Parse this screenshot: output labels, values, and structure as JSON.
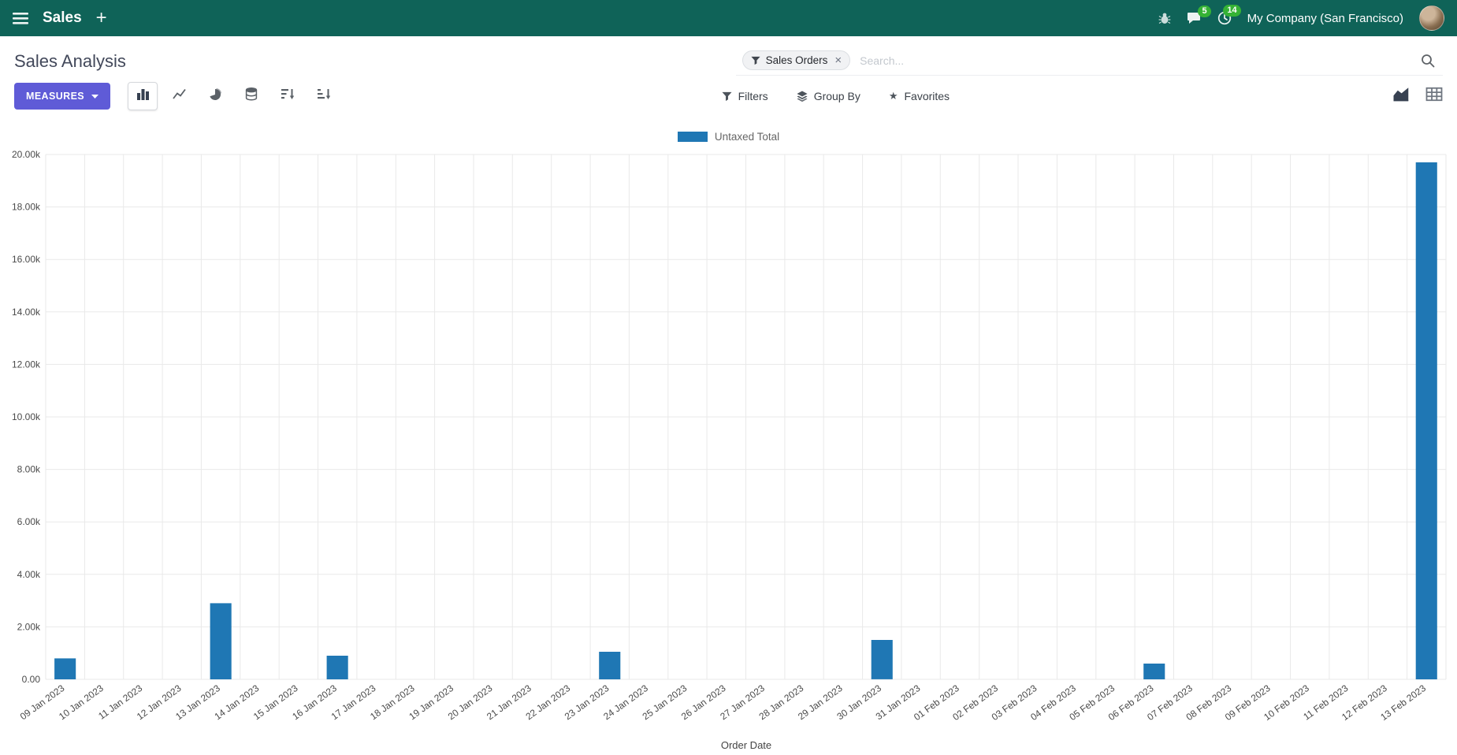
{
  "colors": {
    "navbar_bg": "#0f6358",
    "accent": "#5f5bd7",
    "badge_green": "#35b235"
  },
  "navbar": {
    "app_name": "Sales",
    "company": "My Company (San Francisco)",
    "messages_badge": "5",
    "activities_badge": "14"
  },
  "control_panel": {
    "title": "Sales Analysis",
    "measures_label": "MEASURES",
    "search": {
      "facet": "Sales Orders",
      "placeholder": "Search..."
    },
    "filters_label": "Filters",
    "group_by_label": "Group By",
    "favorites_label": "Favorites"
  },
  "chart_data": {
    "type": "bar",
    "title": "",
    "legend": [
      "Untaxed Total"
    ],
    "categories": [
      "09 Jan 2023",
      "10 Jan 2023",
      "11 Jan 2023",
      "12 Jan 2023",
      "13 Jan 2023",
      "14 Jan 2023",
      "15 Jan 2023",
      "16 Jan 2023",
      "17 Jan 2023",
      "18 Jan 2023",
      "19 Jan 2023",
      "20 Jan 2023",
      "21 Jan 2023",
      "22 Jan 2023",
      "23 Jan 2023",
      "24 Jan 2023",
      "25 Jan 2023",
      "26 Jan 2023",
      "27 Jan 2023",
      "28 Jan 2023",
      "29 Jan 2023",
      "30 Jan 2023",
      "31 Jan 2023",
      "01 Feb 2023",
      "02 Feb 2023",
      "03 Feb 2023",
      "04 Feb 2023",
      "05 Feb 2023",
      "06 Feb 2023",
      "07 Feb 2023",
      "08 Feb 2023",
      "09 Feb 2023",
      "10 Feb 2023",
      "11 Feb 2023",
      "12 Feb 2023",
      "13 Feb 2023"
    ],
    "values": [
      800,
      0,
      0,
      0,
      2900,
      0,
      0,
      900,
      0,
      0,
      0,
      0,
      0,
      0,
      1050,
      0,
      0,
      0,
      0,
      0,
      0,
      1500,
      0,
      0,
      0,
      0,
      0,
      0,
      600,
      0,
      0,
      0,
      0,
      0,
      0,
      19700
    ],
    "xlabel": "Order Date",
    "ylabel": "",
    "ylim": [
      0,
      20000
    ],
    "ytick_step": 2000,
    "ytick_labels": [
      "0.00",
      "2.00k",
      "4.00k",
      "6.00k",
      "8.00k",
      "10.00k",
      "12.00k",
      "14.00k",
      "16.00k",
      "18.00k",
      "20.00k"
    ],
    "grid": true,
    "legend_position": "top",
    "bar_color": "#1f77b4"
  }
}
